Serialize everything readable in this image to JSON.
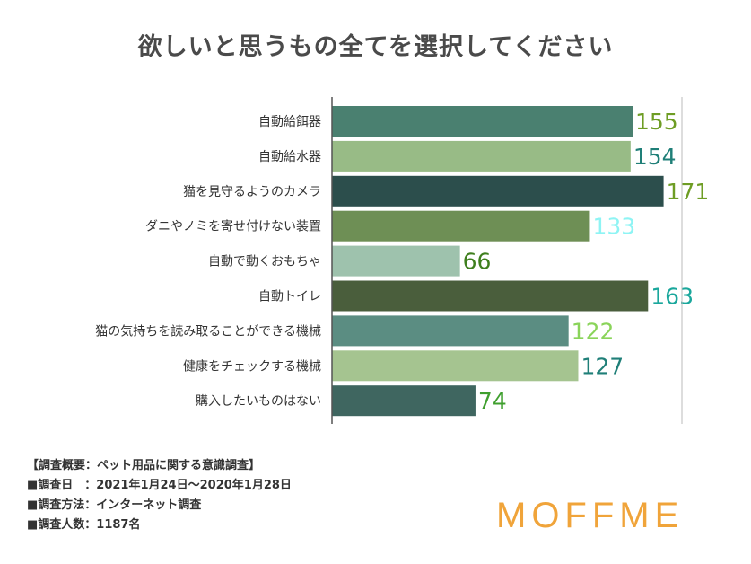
{
  "chart_data": {
    "type": "bar",
    "orientation": "horizontal",
    "title": "欲しいと思うもの全てを選択してください",
    "categories": [
      "自動給餌器",
      "自動給水器",
      "猫を見守るようのカメラ",
      "ダニやノミを寄せ付けない装置",
      "自動で動くおもちゃ",
      "自動トイレ",
      "猫の気持ちを読み取ることができる機械",
      "健康をチェックする機械",
      "購入したいものはない"
    ],
    "values": [
      155,
      154,
      171,
      133,
      66,
      163,
      122,
      127,
      74
    ],
    "bar_colors": [
      "#4a8070",
      "#98bb86",
      "#2c4e4c",
      "#6e8f55",
      "#9ec2ad",
      "#4a5e3c",
      "#5b8d82",
      "#a5c490",
      "#3f6660"
    ],
    "label_colors": [
      "#6e9d24",
      "#1f7f78",
      "#6e9d24",
      "#8ef4f4",
      "#3f7f1e",
      "#1aa79c",
      "#8ad45a",
      "#1f7f78",
      "#3f9f2e"
    ],
    "xlim": [
      0,
      190
    ],
    "xlabel": "",
    "ylabel": "",
    "grid": false
  },
  "survey": {
    "heading": "【調査概要：ペット用品に関する意識調査】",
    "period": "■調査日　：2021年1月24日〜2020年1月28日",
    "method": "■調査方法：インターネット調査",
    "count": "■調査人数：1187名"
  },
  "brand": {
    "logo_text": "MOFFME",
    "color": "#f0a43a"
  }
}
